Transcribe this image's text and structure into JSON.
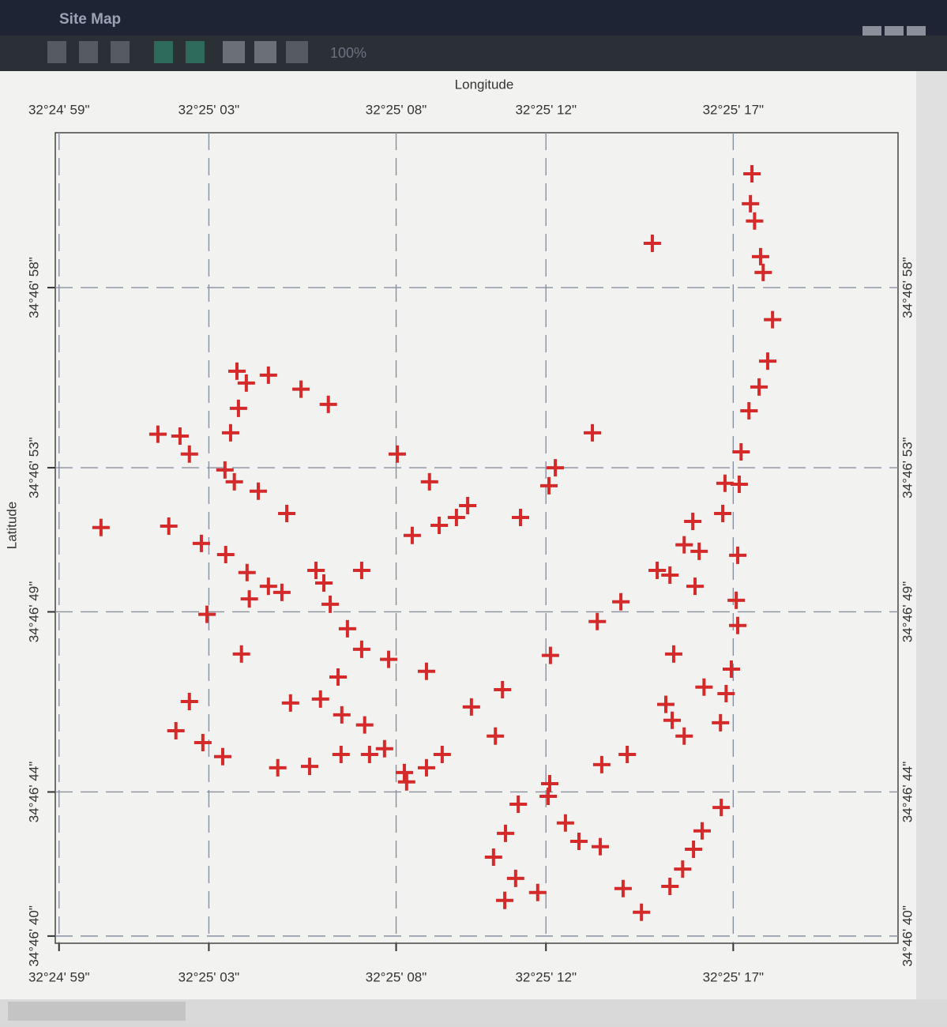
{
  "window": {
    "title": "Site Map",
    "zoom": "100%"
  },
  "chart_data": {
    "type": "scatter",
    "xlabel": "Longitude",
    "ylabel": "Latitude",
    "xlim": [
      58.9,
      81.4
    ],
    "ylim": [
      39.8,
      62.3
    ],
    "xticks": [
      {
        "value": 59,
        "label": "32°24' 59\""
      },
      {
        "value": 63,
        "label": "32°25' 03\""
      },
      {
        "value": 68,
        "label": "32°25' 08\""
      },
      {
        "value": 72,
        "label": "32°25' 12\""
      },
      {
        "value": 77,
        "label": "32°25' 17\""
      }
    ],
    "yticks": [
      {
        "value": 40,
        "label": "34°46' 40\""
      },
      {
        "value": 44,
        "label": "34°46' 44\""
      },
      {
        "value": 49,
        "label": "34°46' 49\""
      },
      {
        "value": 53,
        "label": "34°46' 53\""
      },
      {
        "value": 58,
        "label": "34°46' 58\""
      }
    ],
    "grid": true,
    "series": [
      {
        "color": "#d42a2a",
        "x": [
          77.5,
          77.46,
          77.57,
          74.84,
          77.73,
          77.8,
          78.05,
          77.92,
          77.69,
          77.42,
          63.75,
          64.0,
          64.59,
          65.46,
          66.19,
          63.79,
          61.64,
          62.23,
          62.48,
          63.58,
          63.43,
          63.68,
          64.32,
          65.08,
          68.03,
          68.89,
          68.43,
          69.15,
          69.61,
          69.91,
          71.32,
          72.25,
          72.08,
          73.24,
          77.21,
          76.78,
          77.16,
          76.72,
          75.92,
          75.69,
          76.09,
          77.12,
          74.97,
          75.31,
          75.98,
          77.08,
          77.12,
          60.12,
          61.93,
          62.8,
          63.45,
          64.02,
          64.59,
          64.95,
          64.08,
          65.86,
          66.07,
          67.08,
          66.24,
          62.95,
          66.7,
          67.08,
          63.87,
          67.8,
          68.81,
          73.37,
          74.0,
          72.12,
          75.41,
          66.45,
          65.18,
          65.98,
          62.48,
          62.12,
          66.55,
          67.16,
          62.84,
          63.37,
          70.01,
          70.84,
          70.65,
          76.22,
          76.81,
          76.95,
          75.2,
          75.37,
          75.69,
          76.66,
          64.84,
          65.69,
          66.53,
          67.29,
          67.69,
          68.22,
          68.81,
          69.23,
          68.28,
          73.49,
          74.17,
          72.1,
          72.06,
          71.26,
          72.52,
          70.92,
          73.45,
          72.88,
          76.68,
          76.17,
          75.94,
          75.65,
          75.31,
          70.6,
          71.19,
          70.9,
          71.78,
          74.06,
          74.55
        ],
        "values": [
          61.16,
          60.33,
          59.85,
          59.23,
          58.86,
          58.42,
          57.11,
          55.96,
          55.24,
          54.58,
          55.68,
          55.35,
          55.57,
          55.18,
          54.76,
          54.65,
          53.93,
          53.88,
          53.38,
          53.97,
          52.94,
          52.61,
          52.35,
          51.73,
          53.38,
          52.61,
          51.12,
          51.4,
          51.62,
          51.95,
          51.62,
          53.0,
          52.5,
          53.97,
          53.44,
          52.57,
          52.54,
          51.73,
          51.51,
          50.86,
          50.68,
          50.57,
          50.15,
          50.02,
          49.71,
          49.32,
          48.62,
          51.34,
          51.38,
          50.9,
          50.59,
          50.09,
          49.71,
          49.54,
          49.36,
          50.15,
          49.8,
          50.15,
          49.21,
          48.93,
          48.53,
          47.96,
          47.83,
          47.68,
          47.35,
          48.73,
          49.28,
          47.79,
          47.83,
          47.19,
          46.47,
          46.58,
          46.51,
          45.7,
          46.14,
          45.86,
          45.37,
          44.98,
          46.36,
          46.84,
          45.55,
          46.91,
          46.73,
          47.41,
          46.43,
          45.99,
          45.55,
          45.92,
          44.67,
          44.71,
          45.04,
          45.04,
          45.2,
          44.54,
          44.67,
          45.04,
          44.28,
          44.76,
          45.04,
          44.23,
          43.88,
          43.66,
          43.14,
          42.85,
          42.48,
          42.63,
          43.57,
          42.92,
          42.41,
          41.86,
          41.38,
          42.19,
          41.6,
          40.99,
          41.21,
          41.32,
          40.66
        ]
      }
    ]
  }
}
